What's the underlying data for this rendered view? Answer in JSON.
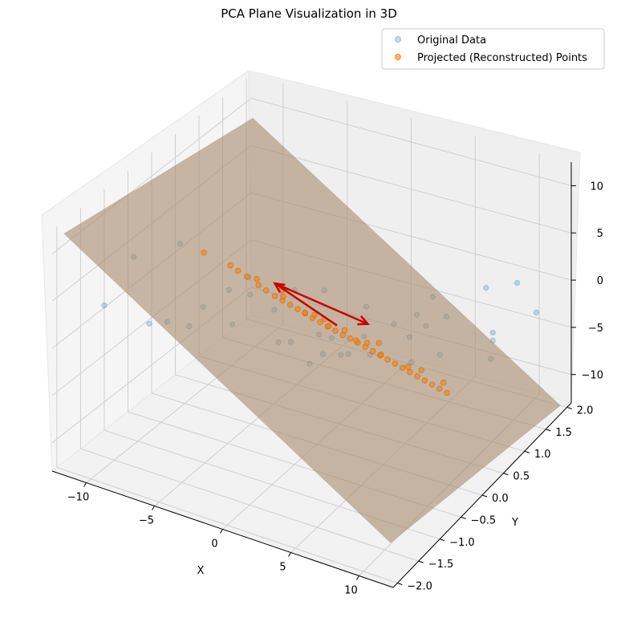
{
  "chart_data": {
    "type": "scatter",
    "title": "PCA Plane Visualization in 3D",
    "xlabel": "X",
    "ylabel": "Y",
    "zlabel": "",
    "xlim": [
      -12.5,
      12.5
    ],
    "ylim": [
      -2.1,
      2.1
    ],
    "zlim": [
      -13,
      12.5
    ],
    "xticks": [
      "−10",
      "−5",
      "0",
      "5",
      "10"
    ],
    "yticks": [
      "−2.0",
      "−1.5",
      "−1.0",
      "−0.5",
      "0.0",
      "0.5",
      "1.0",
      "1.5",
      "2.0"
    ],
    "zticks": [
      "−10",
      "−5",
      "0",
      "5",
      "10"
    ],
    "grid": true,
    "legend_position": "top-right",
    "series": [
      {
        "name": "Original Data",
        "color": "#1f77b4",
        "alpha": 0.25,
        "points": [
          [
            -9.6,
            -1.2,
            7.5
          ],
          [
            -7.2,
            -0.9,
            8.8
          ],
          [
            -10.4,
            -1.6,
            3.6
          ],
          [
            -8.8,
            -1.1,
            0.4
          ],
          [
            -9.2,
            -0.6,
            -1.6
          ],
          [
            -8.6,
            -0.3,
            -3.0
          ],
          [
            -7.1,
            0.2,
            -4.2
          ],
          [
            -6.5,
            -0.6,
            1.2
          ],
          [
            -5.4,
            0.1,
            0.1
          ],
          [
            -4.6,
            0.4,
            -2.4
          ],
          [
            -3.6,
            0.2,
            -4.6
          ],
          [
            -2.6,
            0.8,
            -5.9
          ],
          [
            -1.6,
            0.6,
            -6.7
          ],
          [
            -0.9,
            0.1,
            -5.3
          ],
          [
            -3.9,
            -0.8,
            5.0
          ],
          [
            -0.4,
            -1.4,
            10.5
          ],
          [
            1.3,
            -1.1,
            8.7
          ],
          [
            1.7,
            -1.0,
            8.4
          ],
          [
            2.9,
            -0.7,
            7.6
          ],
          [
            3.4,
            0.1,
            2.6
          ],
          [
            4.5,
            0.4,
            -0.1
          ],
          [
            4.0,
            0.9,
            -3.9
          ],
          [
            5.6,
            0.8,
            -1.6
          ],
          [
            6.9,
            0.2,
            2.8
          ],
          [
            7.5,
            0.7,
            0.6
          ],
          [
            6.0,
            1.0,
            -5.4
          ],
          [
            8.4,
            1.5,
            -5.2
          ],
          [
            8.1,
            0.2,
            5.2
          ],
          [
            9.4,
            1.2,
            -2.6
          ],
          [
            10.2,
            0.8,
            4.3
          ],
          [
            7.9,
            1.6,
            -7.8
          ],
          [
            11.6,
            1.1,
            4.0
          ],
          [
            11.1,
            1.7,
            -2.1
          ],
          [
            1.2,
            0.7,
            -4.1
          ],
          [
            0.1,
            0.3,
            -3.0
          ],
          [
            -0.7,
            0.9,
            -7.6
          ],
          [
            -2.3,
            1.2,
            -9.6
          ],
          [
            -1.1,
            1.5,
            -10.4
          ],
          [
            2.8,
            1.3,
            -8.8
          ],
          [
            -5.8,
            1.1,
            -9.2
          ]
        ]
      },
      {
        "name": "Projected (Reconstructed) Points",
        "color": "#ff7f0e",
        "alpha": 0.6,
        "points": [
          [
            -6.8,
            -0.5,
            6.4
          ],
          [
            -5.5,
            -0.3,
            4.8
          ],
          [
            -5.1,
            -0.25,
            4.2
          ],
          [
            -4.6,
            -0.2,
            3.6
          ],
          [
            -3.9,
            -0.15,
            2.8
          ],
          [
            -3.5,
            -0.1,
            2.2
          ],
          [
            -3.0,
            -0.05,
            1.6
          ],
          [
            -2.6,
            0.0,
            1.1
          ],
          [
            -2.2,
            0.05,
            0.6
          ],
          [
            -1.8,
            0.1,
            0.1
          ],
          [
            -1.4,
            0.15,
            -0.4
          ],
          [
            -1.0,
            0.2,
            -0.9
          ],
          [
            -0.6,
            0.25,
            -1.4
          ],
          [
            -0.2,
            0.3,
            -1.9
          ],
          [
            0.2,
            0.35,
            -2.4
          ],
          [
            0.6,
            0.4,
            -2.9
          ],
          [
            1.0,
            0.45,
            -3.3
          ],
          [
            1.4,
            0.5,
            -3.8
          ],
          [
            1.8,
            0.55,
            -4.3
          ],
          [
            2.2,
            0.6,
            -4.8
          ],
          [
            2.6,
            0.65,
            -5.3
          ],
          [
            3.0,
            0.7,
            -5.8
          ],
          [
            3.4,
            0.75,
            -6.3
          ],
          [
            3.8,
            0.8,
            -6.8
          ],
          [
            4.2,
            0.85,
            -7.3
          ],
          [
            4.6,
            0.9,
            -7.8
          ],
          [
            5.0,
            0.95,
            -8.3
          ],
          [
            5.4,
            1.0,
            -8.8
          ],
          [
            5.8,
            1.05,
            -9.3
          ],
          [
            6.2,
            1.1,
            -9.8
          ],
          [
            -4.2,
            -0.1,
            3.1
          ],
          [
            -2.9,
            0.1,
            1.0
          ],
          [
            -1.6,
            0.2,
            -0.6
          ],
          [
            -0.3,
            0.35,
            -2.1
          ],
          [
            1.1,
            0.55,
            -3.9
          ],
          [
            2.5,
            0.7,
            -5.5
          ],
          [
            3.9,
            0.9,
            -7.1
          ],
          [
            0.4,
            0.5,
            -2.9
          ],
          [
            -1.2,
            0.3,
            -1.1
          ],
          [
            2.0,
            0.8,
            -4.9
          ],
          [
            -3.2,
            0.15,
            1.3
          ],
          [
            4.4,
            1.05,
            -7.9
          ],
          [
            5.6,
            1.2,
            -9.4
          ],
          [
            1.6,
            0.65,
            -4.4
          ],
          [
            -0.8,
            0.4,
            -1.8
          ]
        ]
      }
    ],
    "vectors": [
      {
        "color": "#cc0000",
        "from": [
          0.5,
          0.3,
          -1.5
        ],
        "to": [
          -2.5,
          -0.2,
          3.8
        ]
      },
      {
        "color": "#cc0000",
        "from": [
          -2.5,
          -0.2,
          3.8
        ],
        "to": [
          0.8,
          0.9,
          -3.8
        ]
      }
    ],
    "plane": {
      "color": "#a58b6a",
      "alpha": 0.6,
      "corners": [
        [
          -12.0,
          -2.0,
          12.0
        ],
        [
          -12.0,
          2.0,
          8.5
        ],
        [
          12.0,
          2.0,
          -13.0
        ],
        [
          12.0,
          -2.0,
          -9.0
        ]
      ]
    }
  }
}
